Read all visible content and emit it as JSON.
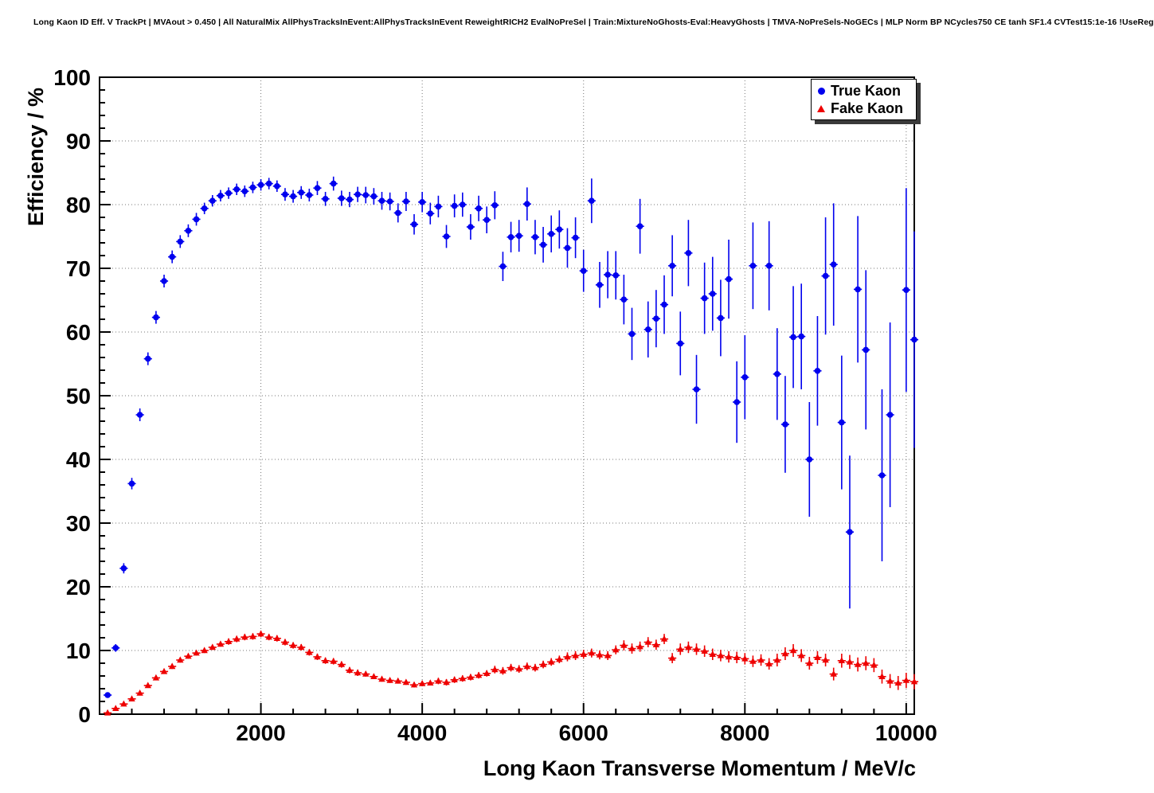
{
  "header": {
    "title": "Long Kaon ID Eff. V TrackPt | MVAout > 0.450 | All NaturalMix AllPhysTracksInEvent:AllPhysTracksInEvent ReweightRICH2 EvalNoPreSel | Train:MixtureNoGhosts-Eval:HeavyGhosts | TMVA-NoPreSels-NoGECs | MLP Norm BP NCycles750 CE tanh SF1.4 CVTest15:1e-16 !UseReg"
  },
  "chart_data": {
    "type": "scatter",
    "title": "Long Kaon ID Eff. V TrackPt | MVAout > 0.450 | All NaturalMix AllPhysTracksInEvent:AllPhysTracksInEvent ReweightRICH2 EvalNoPreSel | Train:MixtureNoGhosts-Eval:HeavyGhosts | TMVA-NoPreSels-NoGECs | MLP Norm BP NCycles750 CE tanh SF1.4 CVTest15:1e-16 !UseReg",
    "xlabel": "Long Kaon Transverse Momentum / MeV/c",
    "ylabel": "Efficiency / %",
    "xlim": [
      0,
      10100
    ],
    "ylim": [
      0,
      100
    ],
    "x_major_ticks": [
      2000,
      4000,
      6000,
      8000,
      10000
    ],
    "x_minor_step": 400,
    "y_major_step": 10,
    "y_minor_step": 2,
    "grid": "dotted",
    "grid_color": "#777777",
    "frame_color": "#000000",
    "legend": {
      "position": "top-right",
      "entries": [
        {
          "label": "True Kaon",
          "marker": "circle",
          "color": "#0000ee"
        },
        {
          "label": "Fake Kaon",
          "marker": "triangle",
          "color": "#ee0000"
        }
      ]
    },
    "series": [
      {
        "name": "True Kaon",
        "marker": "circle",
        "color": "#0000ee",
        "bin_half_width": 50,
        "points": [
          [
            100,
            3.0,
            0.4
          ],
          [
            200,
            10.4,
            0.6
          ],
          [
            300,
            22.9,
            0.8
          ],
          [
            400,
            36.2,
            0.9
          ],
          [
            500,
            47.0,
            1.0
          ],
          [
            600,
            55.8,
            1.0
          ],
          [
            700,
            62.3,
            1.0
          ],
          [
            800,
            68.0,
            1.0
          ],
          [
            900,
            71.8,
            1.0
          ],
          [
            1000,
            74.2,
            1.0
          ],
          [
            1100,
            75.9,
            1.0
          ],
          [
            1200,
            77.7,
            1.0
          ],
          [
            1300,
            79.4,
            0.9
          ],
          [
            1400,
            80.6,
            0.9
          ],
          [
            1500,
            81.4,
            0.9
          ],
          [
            1600,
            81.8,
            0.9
          ],
          [
            1700,
            82.4,
            0.9
          ],
          [
            1800,
            82.1,
            0.9
          ],
          [
            1900,
            82.7,
            0.9
          ],
          [
            2000,
            83.1,
            0.9
          ],
          [
            2100,
            83.3,
            0.9
          ],
          [
            2200,
            82.9,
            0.9
          ],
          [
            2300,
            81.6,
            1.0
          ],
          [
            2400,
            81.3,
            1.0
          ],
          [
            2500,
            81.9,
            1.0
          ],
          [
            2600,
            81.5,
            1.0
          ],
          [
            2700,
            82.6,
            1.1
          ],
          [
            2800,
            80.9,
            1.1
          ],
          [
            2900,
            83.3,
            1.1
          ],
          [
            3000,
            81.0,
            1.2
          ],
          [
            3100,
            80.8,
            1.2
          ],
          [
            3200,
            81.6,
            1.2
          ],
          [
            3300,
            81.5,
            1.3
          ],
          [
            3400,
            81.3,
            1.3
          ],
          [
            3500,
            80.6,
            1.4
          ],
          [
            3600,
            80.5,
            1.4
          ],
          [
            3700,
            78.7,
            1.5
          ],
          [
            3800,
            80.5,
            1.5
          ],
          [
            3900,
            76.9,
            1.6
          ],
          [
            4000,
            80.4,
            1.6
          ],
          [
            4100,
            78.6,
            1.7
          ],
          [
            4200,
            79.7,
            1.7
          ],
          [
            4300,
            75.0,
            1.8
          ],
          [
            4400,
            79.8,
            1.8
          ],
          [
            4500,
            80.0,
            1.9
          ],
          [
            4600,
            76.5,
            2.0
          ],
          [
            4700,
            79.4,
            2.0
          ],
          [
            4800,
            77.6,
            2.1
          ],
          [
            4900,
            79.9,
            2.2
          ],
          [
            5000,
            70.3,
            2.3
          ],
          [
            5100,
            74.9,
            2.4
          ],
          [
            5200,
            75.1,
            2.5
          ],
          [
            5300,
            80.1,
            2.6
          ],
          [
            5400,
            74.9,
            2.7
          ],
          [
            5500,
            73.7,
            2.8
          ],
          [
            5600,
            75.4,
            2.9
          ],
          [
            5700,
            76.1,
            3.0
          ],
          [
            5800,
            73.2,
            3.1
          ],
          [
            5900,
            74.8,
            3.2
          ],
          [
            6000,
            69.6,
            3.3
          ],
          [
            6100,
            80.6,
            3.5
          ],
          [
            6200,
            67.4,
            3.6
          ],
          [
            6300,
            69.0,
            3.7
          ],
          [
            6400,
            68.9,
            3.8
          ],
          [
            6500,
            65.1,
            3.9
          ],
          [
            6600,
            59.7,
            4.1
          ],
          [
            6700,
            76.6,
            4.3
          ],
          [
            6800,
            60.4,
            4.4
          ],
          [
            6900,
            62.1,
            4.5
          ],
          [
            7000,
            64.3,
            4.6
          ],
          [
            7100,
            70.4,
            4.8
          ],
          [
            7200,
            58.2,
            5.0
          ],
          [
            7300,
            72.4,
            5.2
          ],
          [
            7400,
            51.0,
            5.4
          ],
          [
            7500,
            65.3,
            5.6
          ],
          [
            7600,
            66.0,
            5.8
          ],
          [
            7700,
            62.2,
            6.0
          ],
          [
            7800,
            68.3,
            6.2
          ],
          [
            7900,
            49.0,
            6.4
          ],
          [
            8000,
            52.9,
            6.6
          ],
          [
            8100,
            70.4,
            6.8
          ],
          [
            8300,
            70.4,
            7.0
          ],
          [
            8400,
            53.4,
            7.2
          ],
          [
            8500,
            45.5,
            7.6
          ],
          [
            8600,
            59.2,
            8.0
          ],
          [
            8700,
            59.3,
            8.3
          ],
          [
            8800,
            40.0,
            9.0
          ],
          [
            8900,
            53.9,
            8.6
          ],
          [
            9000,
            68.8,
            9.2
          ],
          [
            9100,
            70.6,
            9.6
          ],
          [
            9200,
            45.8,
            10.5
          ],
          [
            9300,
            28.6,
            12.0
          ],
          [
            9400,
            66.7,
            11.5
          ],
          [
            9500,
            57.2,
            12.5
          ],
          [
            9700,
            37.5,
            13.5
          ],
          [
            9800,
            47.0,
            14.5
          ],
          [
            10000,
            66.6,
            16.0
          ],
          [
            10100,
            58.8,
            17.0
          ]
        ]
      },
      {
        "name": "Fake Kaon",
        "marker": "triangle",
        "color": "#ee0000",
        "bin_half_width": 50,
        "points": [
          [
            100,
            0.2,
            0.1
          ],
          [
            200,
            0.9,
            0.2
          ],
          [
            300,
            1.6,
            0.2
          ],
          [
            400,
            2.4,
            0.2
          ],
          [
            500,
            3.3,
            0.3
          ],
          [
            600,
            4.5,
            0.3
          ],
          [
            700,
            5.7,
            0.3
          ],
          [
            800,
            6.7,
            0.3
          ],
          [
            900,
            7.5,
            0.4
          ],
          [
            1000,
            8.5,
            0.4
          ],
          [
            1100,
            9.1,
            0.4
          ],
          [
            1200,
            9.6,
            0.4
          ],
          [
            1300,
            10.0,
            0.4
          ],
          [
            1400,
            10.5,
            0.4
          ],
          [
            1500,
            11.0,
            0.4
          ],
          [
            1600,
            11.4,
            0.5
          ],
          [
            1700,
            11.8,
            0.5
          ],
          [
            1800,
            12.1,
            0.5
          ],
          [
            1900,
            12.2,
            0.5
          ],
          [
            2000,
            12.6,
            0.5
          ],
          [
            2100,
            12.1,
            0.5
          ],
          [
            2200,
            11.9,
            0.5
          ],
          [
            2300,
            11.3,
            0.5
          ],
          [
            2400,
            10.8,
            0.5
          ],
          [
            2500,
            10.5,
            0.5
          ],
          [
            2600,
            9.7,
            0.5
          ],
          [
            2700,
            9.0,
            0.5
          ],
          [
            2800,
            8.4,
            0.5
          ],
          [
            2900,
            8.3,
            0.5
          ],
          [
            3000,
            7.8,
            0.5
          ],
          [
            3100,
            6.9,
            0.5
          ],
          [
            3200,
            6.5,
            0.5
          ],
          [
            3300,
            6.3,
            0.4
          ],
          [
            3400,
            5.9,
            0.4
          ],
          [
            3500,
            5.5,
            0.4
          ],
          [
            3600,
            5.3,
            0.4
          ],
          [
            3700,
            5.2,
            0.4
          ],
          [
            3800,
            5.0,
            0.4
          ],
          [
            3900,
            4.6,
            0.4
          ],
          [
            4000,
            4.8,
            0.4
          ],
          [
            4100,
            4.9,
            0.4
          ],
          [
            4200,
            5.2,
            0.5
          ],
          [
            4300,
            5.0,
            0.5
          ],
          [
            4400,
            5.4,
            0.5
          ],
          [
            4500,
            5.6,
            0.5
          ],
          [
            4600,
            5.8,
            0.5
          ],
          [
            4700,
            6.1,
            0.5
          ],
          [
            4800,
            6.4,
            0.5
          ],
          [
            4900,
            7.0,
            0.6
          ],
          [
            5000,
            6.8,
            0.6
          ],
          [
            5100,
            7.3,
            0.6
          ],
          [
            5200,
            7.1,
            0.6
          ],
          [
            5300,
            7.5,
            0.6
          ],
          [
            5400,
            7.3,
            0.6
          ],
          [
            5500,
            7.8,
            0.6
          ],
          [
            5600,
            8.2,
            0.6
          ],
          [
            5700,
            8.6,
            0.6
          ],
          [
            5800,
            9.0,
            0.7
          ],
          [
            5900,
            9.2,
            0.7
          ],
          [
            6000,
            9.4,
            0.7
          ],
          [
            6100,
            9.6,
            0.7
          ],
          [
            6200,
            9.3,
            0.7
          ],
          [
            6300,
            9.2,
            0.7
          ],
          [
            6400,
            10.1,
            0.7
          ],
          [
            6500,
            10.8,
            0.8
          ],
          [
            6600,
            10.3,
            0.8
          ],
          [
            6700,
            10.6,
            0.8
          ],
          [
            6800,
            11.3,
            0.8
          ],
          [
            6900,
            10.9,
            0.8
          ],
          [
            7000,
            11.8,
            0.8
          ],
          [
            7100,
            8.8,
            0.8
          ],
          [
            7200,
            10.2,
            0.9
          ],
          [
            7300,
            10.5,
            0.9
          ],
          [
            7400,
            10.2,
            0.9
          ],
          [
            7500,
            9.9,
            0.9
          ],
          [
            7600,
            9.4,
            0.9
          ],
          [
            7700,
            9.2,
            0.9
          ],
          [
            7800,
            9.0,
            0.9
          ],
          [
            7900,
            8.9,
            0.9
          ],
          [
            8000,
            8.7,
            0.9
          ],
          [
            8100,
            8.3,
            0.9
          ],
          [
            8200,
            8.5,
            0.9
          ],
          [
            8300,
            7.9,
            0.9
          ],
          [
            8400,
            8.5,
            1.0
          ],
          [
            8500,
            9.5,
            1.0
          ],
          [
            8600,
            10.0,
            1.0
          ],
          [
            8700,
            9.2,
            1.0
          ],
          [
            8800,
            8.0,
            1.0
          ],
          [
            8900,
            8.9,
            1.0
          ],
          [
            9000,
            8.5,
            1.0
          ],
          [
            9100,
            6.3,
            1.0
          ],
          [
            9200,
            8.4,
            1.1
          ],
          [
            9300,
            8.2,
            1.1
          ],
          [
            9400,
            7.8,
            1.1
          ],
          [
            9500,
            8.0,
            1.1
          ],
          [
            9600,
            7.7,
            1.1
          ],
          [
            9700,
            5.9,
            1.1
          ],
          [
            9800,
            5.2,
            1.1
          ],
          [
            9900,
            4.9,
            1.1
          ],
          [
            10000,
            5.3,
            1.2
          ],
          [
            10100,
            5.1,
            1.2
          ]
        ]
      }
    ]
  }
}
